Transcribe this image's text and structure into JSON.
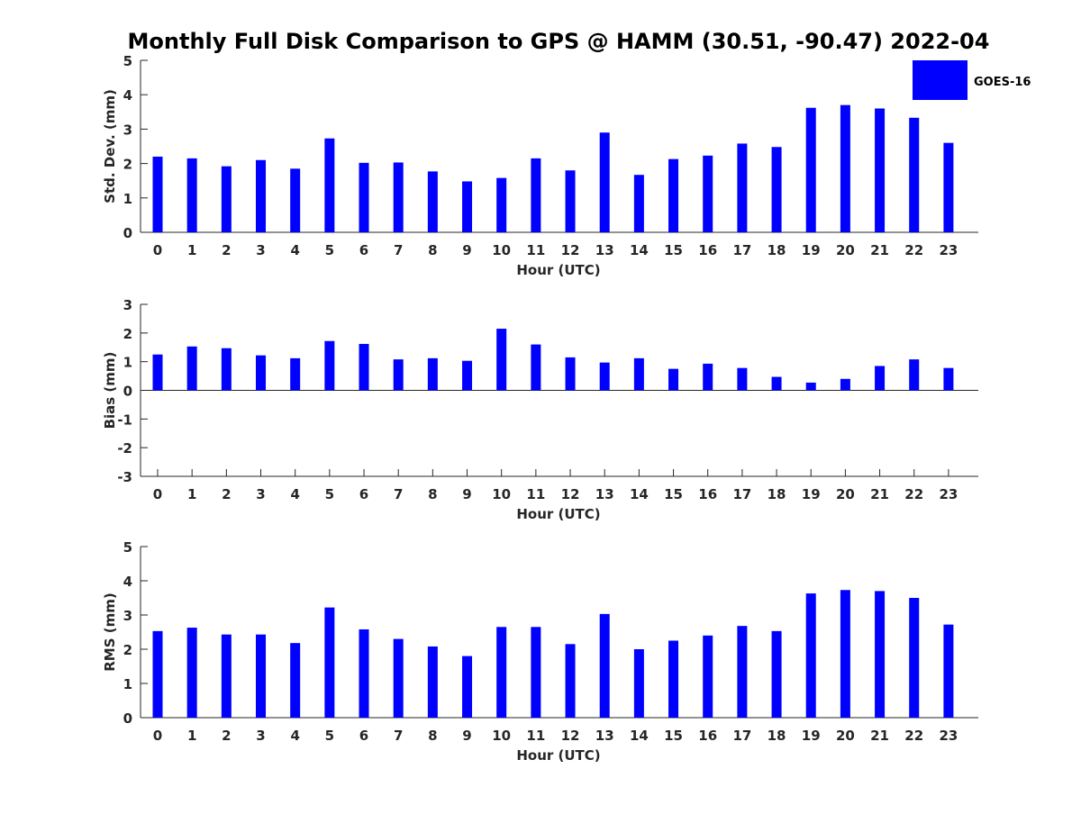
{
  "chart_data": {
    "type": "bar",
    "title": "Monthly Full Disk Comparison to GPS @ HAMM (30.51, -90.47) 2022-04",
    "legend": {
      "placement": "top-right",
      "entries": [
        {
          "name": "GOES-16",
          "color": "#0000ff"
        }
      ]
    },
    "categories": [
      "0",
      "1",
      "2",
      "3",
      "4",
      "5",
      "6",
      "7",
      "8",
      "9",
      "10",
      "11",
      "12",
      "13",
      "14",
      "15",
      "16",
      "17",
      "18",
      "19",
      "20",
      "21",
      "22",
      "23"
    ],
    "panels": [
      {
        "ylabel": "Std. Dev. (mm)",
        "xlabel": "Hour (UTC)",
        "ylim": [
          0,
          5
        ],
        "yticks": [
          "0",
          "1",
          "2",
          "3",
          "4",
          "5"
        ],
        "series": [
          {
            "name": "GOES-16",
            "values": [
              2.2,
              2.15,
              1.92,
              2.1,
              1.85,
              2.73,
              2.02,
              2.03,
              1.77,
              1.48,
              1.58,
              2.15,
              1.8,
              2.9,
              1.67,
              2.13,
              2.23,
              2.58,
              2.48,
              3.62,
              3.7,
              3.6,
              3.33,
              2.6
            ]
          }
        ]
      },
      {
        "ylabel": "Bias (mm)",
        "xlabel": "Hour (UTC)",
        "ylim": [
          -3,
          3
        ],
        "yticks": [
          "-3",
          "-2",
          "-1",
          "0",
          "1",
          "2",
          "3"
        ],
        "series": [
          {
            "name": "GOES-16",
            "values": [
              1.25,
              1.53,
              1.47,
              1.22,
              1.12,
              1.72,
              1.62,
              1.08,
              1.12,
              1.03,
              2.15,
              1.6,
              1.15,
              0.97,
              1.12,
              0.75,
              0.93,
              0.78,
              0.47,
              0.27,
              0.4,
              0.85,
              1.08,
              0.78
            ]
          }
        ]
      },
      {
        "ylabel": "RMS (mm)",
        "xlabel": "Hour (UTC)",
        "ylim": [
          0,
          5
        ],
        "yticks": [
          "0",
          "1",
          "2",
          "3",
          "4",
          "5"
        ],
        "series": [
          {
            "name": "GOES-16",
            "values": [
              2.53,
              2.63,
              2.43,
              2.43,
              2.18,
              3.22,
              2.58,
              2.3,
              2.08,
              1.8,
              2.65,
              2.65,
              2.15,
              3.03,
              2.0,
              2.25,
              2.4,
              2.68,
              2.53,
              3.63,
              3.73,
              3.7,
              3.5,
              2.72
            ]
          }
        ]
      }
    ]
  }
}
